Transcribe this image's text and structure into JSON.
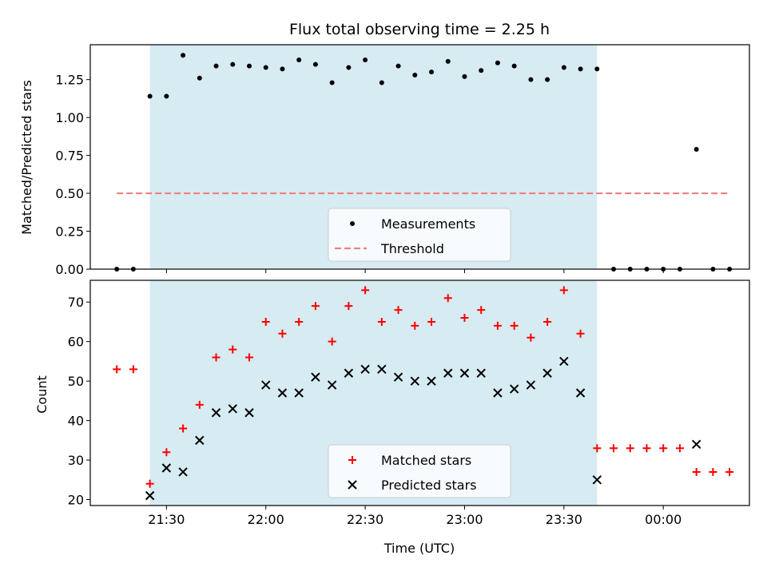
{
  "chart_data": [
    {
      "type": "scatter",
      "title": "Flux total observing time = 2.25 h",
      "xlabel": "",
      "ylabel": "Matched/Predicted stars",
      "xlim": [
        "21:07",
        "00:26"
      ],
      "ylim": [
        0,
        1.48
      ],
      "yticks": [
        "0.00",
        "0.25",
        "0.50",
        "0.75",
        "1.00",
        "1.25"
      ],
      "grid": false,
      "legend": "lower-center",
      "shaded_span": {
        "start": "21:25",
        "end": "23:40",
        "color": "#add8e6"
      },
      "series": [
        {
          "name": "Measurements",
          "marker": "dot",
          "color": "#000000",
          "x": [
            "21:15",
            "21:20",
            "21:25",
            "21:30",
            "21:35",
            "21:40",
            "21:45",
            "21:50",
            "21:55",
            "22:00",
            "22:05",
            "22:10",
            "22:15",
            "22:20",
            "22:25",
            "22:30",
            "22:35",
            "22:40",
            "22:45",
            "22:50",
            "22:55",
            "23:00",
            "23:05",
            "23:10",
            "23:15",
            "23:20",
            "23:25",
            "23:30",
            "23:35",
            "23:40",
            "23:45",
            "23:50",
            "23:55",
            "00:00",
            "00:05",
            "00:10",
            "00:15",
            "00:20"
          ],
          "y": [
            0,
            0,
            1.14,
            1.14,
            1.41,
            1.26,
            1.34,
            1.35,
            1.34,
            1.33,
            1.32,
            1.38,
            1.35,
            1.23,
            1.33,
            1.38,
            1.23,
            1.34,
            1.28,
            1.3,
            1.37,
            1.27,
            1.31,
            1.36,
            1.34,
            1.25,
            1.25,
            1.33,
            1.32,
            1.32,
            0,
            0,
            0,
            0,
            0,
            0.79,
            0,
            0
          ]
        },
        {
          "name": "Threshold",
          "marker": "dashed-line",
          "color": "#f08080",
          "x": [
            "21:15",
            "00:20"
          ],
          "y": [
            0.5,
            0.5
          ]
        }
      ]
    },
    {
      "type": "scatter",
      "title": "",
      "xlabel": "Time (UTC)",
      "ylabel": "Count",
      "xlim": [
        "21:07",
        "00:26"
      ],
      "ylim": [
        18.5,
        75.5
      ],
      "xticks": [
        "21:30",
        "22:00",
        "22:30",
        "23:00",
        "23:30",
        "00:00"
      ],
      "yticks": [
        "20",
        "30",
        "40",
        "50",
        "60",
        "70"
      ],
      "grid": false,
      "legend": "lower-center",
      "shaded_span": {
        "start": "21:25",
        "end": "23:40",
        "color": "#add8e6"
      },
      "series": [
        {
          "name": "Matched stars",
          "marker": "plus",
          "color": "#ff0000",
          "x": [
            "21:15",
            "21:20",
            "21:25",
            "21:30",
            "21:35",
            "21:40",
            "21:45",
            "21:50",
            "21:55",
            "22:00",
            "22:05",
            "22:10",
            "22:15",
            "22:20",
            "22:25",
            "22:30",
            "22:35",
            "22:40",
            "22:45",
            "22:50",
            "22:55",
            "23:00",
            "23:05",
            "23:10",
            "23:15",
            "23:20",
            "23:25",
            "23:30",
            "23:35",
            "23:40",
            "23:45",
            "23:50",
            "23:55",
            "00:00",
            "00:05",
            "00:10",
            "00:15",
            "00:20"
          ],
          "y": [
            53,
            53,
            24,
            32,
            38,
            44,
            56,
            58,
            56,
            65,
            62,
            65,
            69,
            60,
            69,
            73,
            65,
            68,
            64,
            65,
            71,
            66,
            68,
            64,
            64,
            61,
            65,
            73,
            62,
            33,
            33,
            33,
            33,
            33,
            33,
            27,
            27,
            27
          ]
        },
        {
          "name": "Predicted stars",
          "marker": "x",
          "color": "#000000",
          "x": [
            "21:25",
            "21:30",
            "21:35",
            "21:40",
            "21:45",
            "21:50",
            "21:55",
            "22:00",
            "22:05",
            "22:10",
            "22:15",
            "22:20",
            "22:25",
            "22:30",
            "22:35",
            "22:40",
            "22:45",
            "22:50",
            "22:55",
            "23:00",
            "23:05",
            "23:10",
            "23:15",
            "23:20",
            "23:25",
            "23:30",
            "23:35",
            "23:40",
            "00:10"
          ],
          "y": [
            21,
            28,
            27,
            35,
            42,
            43,
            42,
            49,
            47,
            47,
            51,
            49,
            52,
            53,
            53,
            51,
            50,
            50,
            52,
            52,
            52,
            47,
            48,
            49,
            52,
            55,
            47,
            25,
            34
          ]
        }
      ]
    }
  ]
}
